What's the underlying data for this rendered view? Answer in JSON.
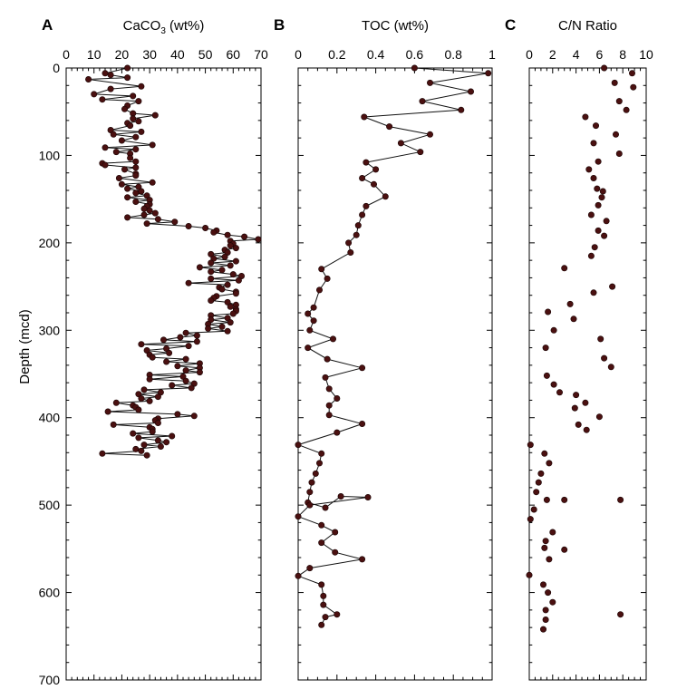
{
  "chart_data": [
    {
      "type": "line",
      "panel_label": "A",
      "title": "CaCO3 (wt%)",
      "title_main": "CaCO",
      "title_sub": "3",
      "title_rest": " (wt%)",
      "ylabel": "Depth (mcd)",
      "xlim": [
        0,
        70
      ],
      "ylim": [
        0,
        700
      ],
      "y_inverted": true,
      "x_axis_position": "top",
      "x_ticks": [
        "0",
        "10",
        "20",
        "30",
        "40",
        "50",
        "60",
        "70"
      ],
      "y_ticks": [
        "0",
        "100",
        "200",
        "300",
        "400",
        "500",
        "600",
        "700"
      ],
      "line": true,
      "marker_color": "#4a1010",
      "series": [
        {
          "x": [
            22,
            14,
            16,
            22,
            8,
            27,
            16,
            10,
            24,
            13,
            26,
            22,
            21,
            24,
            32,
            24,
            26,
            22,
            23,
            16,
            27,
            17,
            25,
            20,
            31,
            14,
            25,
            18,
            23,
            23,
            25,
            13,
            14,
            25,
            21,
            25,
            25,
            19,
            31,
            20,
            26,
            22,
            27,
            25,
            29,
            22,
            30,
            25,
            30,
            29,
            28,
            30,
            32,
            28,
            22,
            33,
            39,
            29,
            44,
            50,
            54,
            53,
            58,
            64,
            69,
            59,
            60,
            59,
            61,
            57,
            58,
            52,
            57,
            53,
            61,
            52,
            59,
            48,
            56,
            52,
            60,
            63,
            52,
            62,
            44,
            58,
            55,
            56,
            61,
            61,
            54,
            53,
            52,
            58,
            61,
            59,
            61,
            61,
            60,
            52,
            58,
            52,
            59,
            51,
            56,
            51,
            58,
            43,
            47,
            41,
            35,
            47,
            27,
            44,
            36,
            29,
            37,
            30,
            31,
            43,
            36,
            48,
            40,
            48,
            43,
            48,
            30,
            42,
            30,
            43,
            46,
            38,
            45,
            28,
            34,
            26,
            33,
            27,
            30,
            18,
            24,
            25,
            26,
            15,
            40,
            46,
            33,
            32,
            33,
            17,
            30,
            31,
            31,
            24,
            38,
            26,
            33,
            36,
            28,
            34,
            25,
            27,
            13,
            29
          ],
          "y": [
            0,
            6,
            8,
            11,
            13,
            21,
            24,
            30,
            32,
            36,
            38,
            43,
            47,
            52,
            54,
            58,
            61,
            63,
            66,
            71,
            73,
            76,
            79,
            83,
            88,
            91,
            93,
            96,
            98,
            103,
            107,
            109,
            111,
            114,
            116,
            121,
            123,
            126,
            131,
            133,
            136,
            138,
            141,
            143,
            146,
            148,
            151,
            153,
            156,
            158,
            161,
            163,
            166,
            168,
            171,
            173,
            176,
            178,
            181,
            183,
            186,
            188,
            191,
            193,
            196,
            198,
            201,
            203,
            206,
            208,
            211,
            213,
            216,
            218,
            221,
            223,
            226,
            228,
            231,
            233,
            236,
            238,
            241,
            243,
            246,
            248,
            251,
            253,
            256,
            258,
            261,
            263,
            266,
            268,
            271,
            273,
            276,
            278,
            281,
            283,
            286,
            288,
            291,
            293,
            296,
            298,
            301,
            303,
            306,
            308,
            311,
            313,
            316,
            318,
            321,
            323,
            326,
            328,
            331,
            333,
            336,
            338,
            341,
            343,
            346,
            348,
            351,
            353,
            356,
            358,
            361,
            363,
            366,
            368,
            371,
            373,
            376,
            378,
            381,
            383,
            386,
            388,
            391,
            393,
            396,
            398,
            401,
            403,
            406,
            408,
            411,
            413,
            416,
            418,
            421,
            423,
            426,
            428,
            431,
            433,
            436,
            438,
            441,
            443
          ]
        }
      ]
    },
    {
      "type": "line",
      "panel_label": "B",
      "title": "TOC (wt%)",
      "xlim": [
        0,
        1
      ],
      "ylim": [
        0,
        700
      ],
      "y_inverted": true,
      "x_axis_position": "top",
      "x_ticks": [
        "0",
        "0.2",
        "0.4",
        "0.6",
        "0.8",
        "1"
      ],
      "y_ticks": [
        "0",
        "100",
        "200",
        "300",
        "400",
        "500",
        "600",
        "700"
      ],
      "line": true,
      "marker_color": "#4a1010",
      "series": [
        {
          "x": [
            0.6,
            0.98,
            0.68,
            0.89,
            0.64,
            0.84,
            0.34,
            0.47,
            0.68,
            0.53,
            0.63,
            0.35,
            0.4,
            0.33,
            0.39,
            0.45,
            0.35,
            0.33,
            0.31,
            0.3,
            0.26,
            0.27,
            0.12,
            0.15,
            0.11,
            0.08,
            0.05,
            0.08,
            0.06,
            0.18,
            0.05,
            0.15,
            0.33,
            0.14,
            0.16,
            0.2,
            0.16,
            0.16,
            0.33,
            0.2,
            0,
            0.12,
            0.11,
            0.09,
            0.07,
            0.06,
            0.05,
            0.14,
            0.22,
            0.36,
            0.06,
            0,
            0.12,
            0.19,
            0.12,
            0.19,
            0.33,
            0.06,
            0,
            0.12,
            0.13,
            0.13,
            0.2,
            0.14,
            0.12
          ],
          "y": [
            0,
            6,
            17,
            27,
            38,
            48,
            56,
            67,
            76,
            86,
            96,
            108,
            116,
            126,
            133,
            147,
            158,
            168,
            180,
            191,
            200,
            211,
            230,
            241,
            254,
            274,
            281,
            289,
            300,
            310,
            320,
            333,
            343,
            354,
            367,
            378,
            386,
            397,
            407,
            417,
            431,
            441,
            452,
            464,
            474,
            485,
            497,
            503,
            490,
            491,
            500,
            513,
            523,
            531,
            543,
            554,
            562,
            572,
            581,
            591,
            604,
            614,
            625,
            628,
            637
          ]
        }
      ]
    },
    {
      "type": "scatter",
      "panel_label": "C",
      "title": "C/N Ratio",
      "xlim": [
        0,
        10
      ],
      "ylim": [
        0,
        700
      ],
      "y_inverted": true,
      "x_axis_position": "top",
      "x_ticks": [
        "0",
        "2",
        "4",
        "6",
        "8",
        "10"
      ],
      "y_ticks": [
        "0",
        "100",
        "200",
        "300",
        "400",
        "500",
        "600",
        "700"
      ],
      "line": false,
      "marker_color": "#4a1010",
      "series": [
        {
          "x": [
            6.4,
            8.8,
            7.3,
            8.9,
            7.7,
            8.3,
            4.8,
            5.7,
            7.4,
            5.5,
            7.7,
            5.9,
            5.1,
            5.5,
            5.8,
            6.3,
            6.2,
            5.9,
            5.3,
            6.6,
            5.9,
            6.4,
            5.6,
            5.3,
            3,
            7.1,
            5.5,
            3.5,
            1.6,
            3.8,
            2.1,
            6.1,
            1.4,
            6.4,
            7,
            1.5,
            2.1,
            2.6,
            4,
            4.8,
            3.9,
            6,
            4.2,
            4.9,
            0.1,
            1.3,
            1.7,
            1,
            0.8,
            0.6,
            1.5,
            3,
            7.8,
            0.4,
            0.1,
            2,
            1.4,
            1.3,
            3,
            1.7,
            0,
            1.2,
            1.6,
            2,
            1.4,
            7.8,
            1.4,
            1.2
          ],
          "y": [
            0,
            6,
            17,
            22,
            38,
            48,
            56,
            66,
            76,
            86,
            98,
            107,
            116,
            126,
            138,
            141,
            148,
            157,
            168,
            175,
            186,
            192,
            205,
            215,
            229,
            250,
            257,
            270,
            279,
            287,
            300,
            310,
            320,
            332,
            342,
            352,
            362,
            371,
            374,
            383,
            389,
            399,
            408,
            414,
            431,
            441,
            452,
            464,
            474,
            485,
            494,
            494,
            494,
            505,
            516,
            531,
            541,
            549,
            551,
            562,
            580,
            591,
            600,
            611,
            620,
            625,
            631,
            642
          ]
        }
      ]
    }
  ]
}
